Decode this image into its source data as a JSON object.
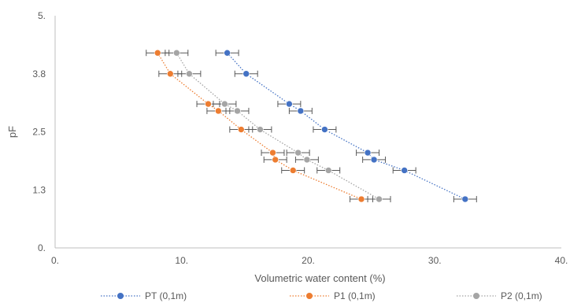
{
  "chart_data": {
    "type": "scatter",
    "title": "",
    "xlabel": "Volumetric water content (%)",
    "ylabel": "pF",
    "xlim": [
      0,
      40
    ],
    "ylim": [
      0,
      5
    ],
    "x_ticks": [
      0,
      10,
      20,
      30,
      40
    ],
    "x_tick_labels": [
      "0.",
      "10.",
      "20.",
      "30.",
      "40."
    ],
    "y_ticks": [
      0,
      1.25,
      2.5,
      3.75,
      5
    ],
    "y_tick_labels": [
      "0.",
      "1.3",
      "2.5",
      "3.8",
      "5."
    ],
    "grid": false,
    "legend": "bottom",
    "series": [
      {
        "name": "PT (0,1m)",
        "color": "#4472C4",
        "points": [
          {
            "x": 13.6,
            "y": 4.2,
            "err": 0.9
          },
          {
            "x": 15.1,
            "y": 3.75,
            "err": 0.9
          },
          {
            "x": 18.5,
            "y": 3.1,
            "err": 0.9
          },
          {
            "x": 19.4,
            "y": 2.95,
            "err": 0.9
          },
          {
            "x": 21.3,
            "y": 2.55,
            "err": 0.9
          },
          {
            "x": 24.7,
            "y": 2.05,
            "err": 0.9
          },
          {
            "x": 25.2,
            "y": 1.9,
            "err": 0.9
          },
          {
            "x": 27.6,
            "y": 1.67,
            "err": 0.9
          },
          {
            "x": 32.4,
            "y": 1.05,
            "err": 0.9
          }
        ]
      },
      {
        "name": "P1  (0,1m)",
        "color": "#ED7D31",
        "points": [
          {
            "x": 8.1,
            "y": 4.2,
            "err": 0.9
          },
          {
            "x": 9.1,
            "y": 3.75,
            "err": 0.9
          },
          {
            "x": 12.1,
            "y": 3.1,
            "err": 0.9
          },
          {
            "x": 12.9,
            "y": 2.95,
            "err": 0.9
          },
          {
            "x": 14.7,
            "y": 2.55,
            "err": 0.9
          },
          {
            "x": 17.2,
            "y": 2.05,
            "err": 0.9
          },
          {
            "x": 17.4,
            "y": 1.9,
            "err": 0.9
          },
          {
            "x": 18.8,
            "y": 1.67,
            "err": 0.9
          },
          {
            "x": 24.2,
            "y": 1.05,
            "err": 0.9
          }
        ]
      },
      {
        "name": "P2 (0,1m)",
        "color": "#A5A5A5",
        "points": [
          {
            "x": 9.6,
            "y": 4.2,
            "err": 0.9
          },
          {
            "x": 10.6,
            "y": 3.75,
            "err": 0.9
          },
          {
            "x": 13.4,
            "y": 3.1,
            "err": 0.9
          },
          {
            "x": 14.4,
            "y": 2.95,
            "err": 0.9
          },
          {
            "x": 16.2,
            "y": 2.55,
            "err": 0.9
          },
          {
            "x": 19.2,
            "y": 2.05,
            "err": 0.9
          },
          {
            "x": 19.9,
            "y": 1.9,
            "err": 0.9
          },
          {
            "x": 21.6,
            "y": 1.67,
            "err": 0.9
          },
          {
            "x": 25.6,
            "y": 1.05,
            "err": 0.9
          }
        ]
      }
    ]
  }
}
